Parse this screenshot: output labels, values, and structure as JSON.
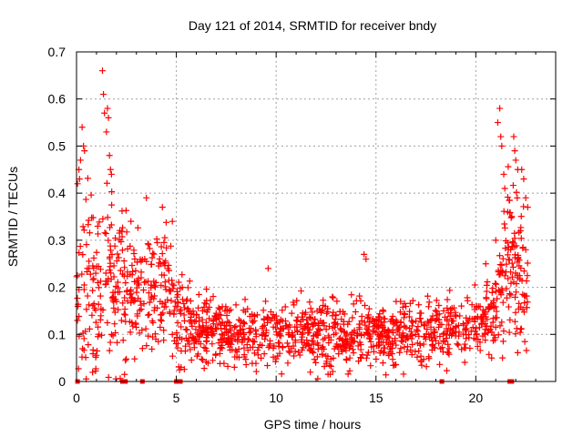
{
  "chart_data": {
    "type": "scatter",
    "title": "Day 121 of 2014, SRMTID for receiver bndy",
    "xlabel": "GPS time / hours",
    "ylabel": "SRMTID / TECUs",
    "xlim": [
      0,
      24
    ],
    "ylim": [
      0,
      0.7
    ],
    "xticks": [
      0,
      5,
      10,
      15,
      20
    ],
    "yticks": [
      0,
      0.1,
      0.2,
      0.3,
      0.4,
      0.5,
      0.6,
      0.7
    ],
    "grid": true,
    "legend": "none",
    "marker": "+",
    "series": [
      {
        "name": "SRMTID",
        "color": "#ff0000",
        "envelope": [
          {
            "x": 0.0,
            "mean": 0.22,
            "spread": 0.14
          },
          {
            "x": 0.5,
            "mean": 0.2,
            "spread": 0.18
          },
          {
            "x": 1.0,
            "mean": 0.18,
            "spread": 0.16
          },
          {
            "x": 1.5,
            "mean": 0.24,
            "spread": 0.2
          },
          {
            "x": 2.0,
            "mean": 0.2,
            "spread": 0.14
          },
          {
            "x": 2.5,
            "mean": 0.18,
            "spread": 0.12
          },
          {
            "x": 3.0,
            "mean": 0.19,
            "spread": 0.11
          },
          {
            "x": 3.5,
            "mean": 0.18,
            "spread": 0.11
          },
          {
            "x": 4.0,
            "mean": 0.19,
            "spread": 0.1
          },
          {
            "x": 4.5,
            "mean": 0.2,
            "spread": 0.1
          },
          {
            "x": 5.0,
            "mean": 0.14,
            "spread": 0.08
          },
          {
            "x": 6.0,
            "mean": 0.11,
            "spread": 0.05
          },
          {
            "x": 8.0,
            "mean": 0.1,
            "spread": 0.055
          },
          {
            "x": 10.0,
            "mean": 0.105,
            "spread": 0.06
          },
          {
            "x": 12.0,
            "mean": 0.1,
            "spread": 0.06
          },
          {
            "x": 14.0,
            "mean": 0.1,
            "spread": 0.055
          },
          {
            "x": 16.0,
            "mean": 0.1,
            "spread": 0.05
          },
          {
            "x": 18.0,
            "mean": 0.105,
            "spread": 0.055
          },
          {
            "x": 20.0,
            "mean": 0.12,
            "spread": 0.055
          },
          {
            "x": 21.0,
            "mean": 0.15,
            "spread": 0.06
          },
          {
            "x": 21.5,
            "mean": 0.25,
            "spread": 0.15
          },
          {
            "x": 22.0,
            "mean": 0.24,
            "spread": 0.15
          },
          {
            "x": 22.6,
            "mean": 0.2,
            "spread": 0.12
          }
        ],
        "peaks": [
          {
            "x": 0.05,
            "y": 0.42
          },
          {
            "x": 0.12,
            "y": 0.45
          },
          {
            "x": 0.2,
            "y": 0.47
          },
          {
            "x": 0.28,
            "y": 0.54
          },
          {
            "x": 0.35,
            "y": 0.5
          },
          {
            "x": 0.4,
            "y": 0.49
          },
          {
            "x": 0.15,
            "y": 0.43
          },
          {
            "x": 1.3,
            "y": 0.66
          },
          {
            "x": 1.35,
            "y": 0.61
          },
          {
            "x": 1.4,
            "y": 0.57
          },
          {
            "x": 1.55,
            "y": 0.58
          },
          {
            "x": 1.6,
            "y": 0.56
          },
          {
            "x": 1.65,
            "y": 0.48
          },
          {
            "x": 1.7,
            "y": 0.45
          },
          {
            "x": 1.75,
            "y": 0.44
          },
          {
            "x": 1.5,
            "y": 0.53
          },
          {
            "x": 3.5,
            "y": 0.39
          },
          {
            "x": 4.3,
            "y": 0.37
          },
          {
            "x": 4.8,
            "y": 0.34
          },
          {
            "x": 9.6,
            "y": 0.24
          },
          {
            "x": 14.4,
            "y": 0.27
          },
          {
            "x": 14.5,
            "y": 0.26
          },
          {
            "x": 20.5,
            "y": 0.25
          },
          {
            "x": 21.1,
            "y": 0.55
          },
          {
            "x": 21.2,
            "y": 0.58
          },
          {
            "x": 21.25,
            "y": 0.52
          },
          {
            "x": 21.3,
            "y": 0.5
          },
          {
            "x": 21.4,
            "y": 0.44
          },
          {
            "x": 21.45,
            "y": 0.41
          },
          {
            "x": 21.9,
            "y": 0.52
          },
          {
            "x": 21.95,
            "y": 0.49
          },
          {
            "x": 22.0,
            "y": 0.47
          },
          {
            "x": 22.1,
            "y": 0.45
          },
          {
            "x": 22.3,
            "y": 0.45
          },
          {
            "x": 22.4,
            "y": 0.43
          },
          {
            "x": 22.5,
            "y": 0.39
          },
          {
            "x": 21.0,
            "y": 0.3
          },
          {
            "x": 21.6,
            "y": 0.36
          },
          {
            "x": 22.6,
            "y": 0.37
          }
        ],
        "zero_flags_x": [
          0.05,
          2.3,
          2.45,
          3.3,
          5.0,
          5.2,
          18.3,
          21.7,
          21.8
        ]
      }
    ]
  }
}
